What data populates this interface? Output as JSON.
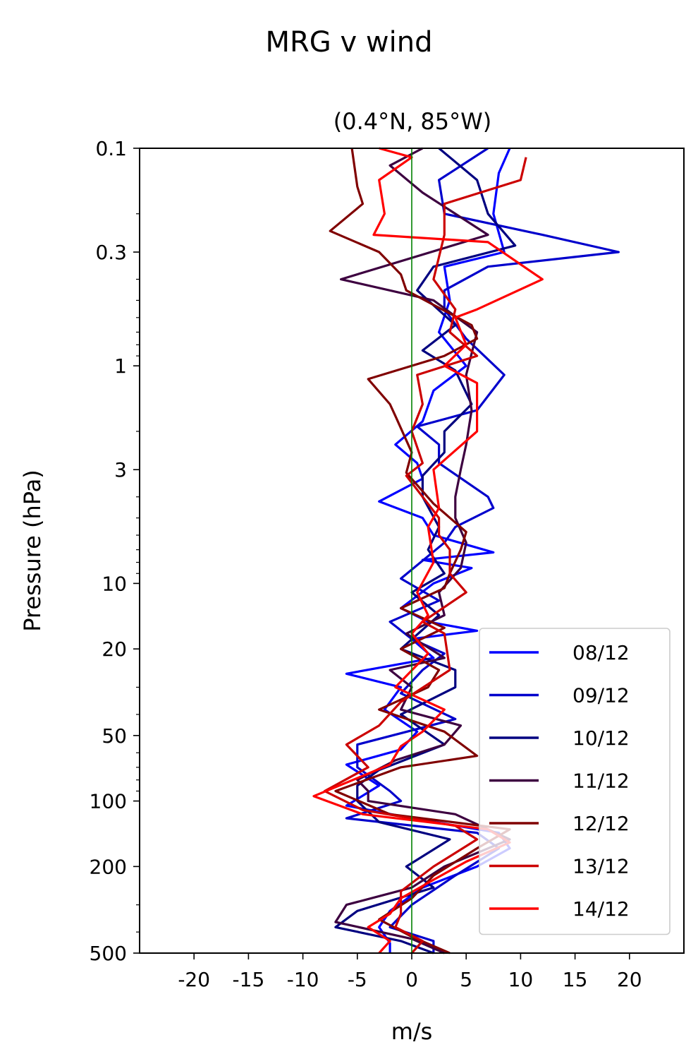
{
  "chart_data": {
    "type": "line",
    "title": "MRG v wind",
    "subtitle": "(0.4°N, 85°W)",
    "xlabel": "m/s",
    "ylabel": "Pressure (hPa)",
    "xlim": [
      -25,
      25
    ],
    "ylim": [
      500,
      0.1
    ],
    "yscale": "log",
    "xticks": [
      -20,
      -15,
      -10,
      -5,
      0,
      5,
      10,
      15,
      20
    ],
    "xtick_labels": [
      "-20",
      "-15",
      "-10",
      "-5",
      "0",
      "5",
      "10",
      "15",
      "20"
    ],
    "yticks": [
      0.1,
      0.3,
      1,
      3,
      10,
      20,
      50,
      100,
      200,
      500
    ],
    "ytick_labels": [
      "0.1",
      "0.3",
      "1",
      "3",
      "10",
      "20",
      "50",
      "100",
      "200",
      "500"
    ],
    "reference_line": {
      "x": 0,
      "color": "#008000"
    },
    "legend_position": "lower-right",
    "grid": false,
    "series": [
      {
        "name": "08/12",
        "color": "#0000ff",
        "points": [
          [
            9,
            0.1
          ],
          [
            8,
            0.13
          ],
          [
            7.5,
            0.2
          ],
          [
            8.5,
            0.3
          ],
          [
            3,
            0.35
          ],
          [
            3.5,
            0.5
          ],
          [
            2.5,
            0.7
          ],
          [
            5,
            1
          ],
          [
            2,
            1.3
          ],
          [
            1,
            1.8
          ],
          [
            -1.5,
            2.3
          ],
          [
            0.5,
            2.8
          ],
          [
            1,
            3.3
          ],
          [
            -3,
            4.2
          ],
          [
            1,
            5
          ],
          [
            2,
            6
          ],
          [
            7.5,
            7.2
          ],
          [
            1,
            7.8
          ],
          [
            5.5,
            8.5
          ],
          [
            2,
            10
          ],
          [
            -1,
            13
          ],
          [
            1.5,
            15
          ],
          [
            6,
            16.5
          ],
          [
            0,
            18
          ],
          [
            2,
            22
          ],
          [
            -6,
            26
          ],
          [
            -1,
            30
          ],
          [
            -2.5,
            38
          ],
          [
            0.5,
            48
          ],
          [
            -1,
            58
          ],
          [
            -6,
            68
          ],
          [
            -3,
            85
          ],
          [
            -6,
            105
          ],
          [
            0,
            120
          ],
          [
            8,
            140
          ],
          [
            9,
            165
          ],
          [
            6,
            200
          ],
          [
            1,
            250
          ],
          [
            -2,
            320
          ],
          [
            -3,
            380
          ],
          [
            -2,
            450
          ],
          [
            -2,
            500
          ]
        ]
      },
      {
        "name": "09/12",
        "color": "#0000cc",
        "points": [
          [
            7,
            0.1
          ],
          [
            2.5,
            0.14
          ],
          [
            3,
            0.2
          ],
          [
            12,
            0.25
          ],
          [
            19,
            0.3
          ],
          [
            7,
            0.35
          ],
          [
            3,
            0.45
          ],
          [
            3,
            0.55
          ],
          [
            5,
            0.75
          ],
          [
            8.5,
            1.1
          ],
          [
            6,
            1.6
          ],
          [
            0.5,
            1.9
          ],
          [
            2.5,
            2.3
          ],
          [
            2.5,
            2.8
          ],
          [
            7,
            4
          ],
          [
            7.5,
            4.5
          ],
          [
            4,
            5.5
          ],
          [
            3,
            6.5
          ],
          [
            -1,
            9.5
          ],
          [
            2.5,
            12
          ],
          [
            -2,
            15
          ],
          [
            0,
            18
          ],
          [
            3,
            21
          ],
          [
            1,
            25
          ],
          [
            -1,
            32
          ],
          [
            4,
            42
          ],
          [
            -5,
            55
          ],
          [
            -5,
            70
          ],
          [
            -2,
            90
          ],
          [
            -1,
            100
          ],
          [
            -6,
            120
          ],
          [
            6,
            140
          ],
          [
            8,
            165
          ],
          [
            4,
            220
          ],
          [
            0,
            300
          ],
          [
            -2,
            380
          ],
          [
            2,
            440
          ],
          [
            2,
            500
          ]
        ]
      },
      {
        "name": "10/12",
        "color": "#000080",
        "points": [
          [
            2.5,
            0.1
          ],
          [
            6,
            0.14
          ],
          [
            7,
            0.2
          ],
          [
            9.5,
            0.28
          ],
          [
            2,
            0.35
          ],
          [
            0.5,
            0.45
          ],
          [
            4,
            0.65
          ],
          [
            1,
            0.85
          ],
          [
            4,
            1.05
          ],
          [
            5.5,
            1.5
          ],
          [
            3,
            2
          ],
          [
            3,
            2.5
          ],
          [
            1,
            3.2
          ],
          [
            1,
            4
          ],
          [
            2.5,
            5.5
          ],
          [
            1.5,
            7
          ],
          [
            3,
            9
          ],
          [
            0,
            11
          ],
          [
            2.5,
            14
          ],
          [
            -1,
            20
          ],
          [
            4,
            25
          ],
          [
            4,
            30
          ],
          [
            -1,
            40
          ],
          [
            3,
            55
          ],
          [
            -3,
            72
          ],
          [
            -5,
            85
          ],
          [
            -5,
            100
          ],
          [
            -3,
            125
          ],
          [
            3.5,
            150
          ],
          [
            -0.5,
            200
          ],
          [
            2,
            250
          ],
          [
            -5,
            320
          ],
          [
            -7,
            380
          ],
          [
            -1,
            440
          ],
          [
            2,
            500
          ]
        ]
      },
      {
        "name": "11/12",
        "color": "#3d0040",
        "points": [
          [
            1,
            0.1
          ],
          [
            -2,
            0.12
          ],
          [
            1,
            0.16
          ],
          [
            7,
            0.25
          ],
          [
            -6.5,
            0.4
          ],
          [
            2,
            0.5
          ],
          [
            6,
            0.7
          ],
          [
            5,
            1.1
          ],
          [
            5.5,
            1.6
          ],
          [
            5,
            2.3
          ],
          [
            4.5,
            3
          ],
          [
            4,
            4
          ],
          [
            4,
            5
          ],
          [
            5,
            6.5
          ],
          [
            4.5,
            8.5
          ],
          [
            2.5,
            11
          ],
          [
            3,
            14
          ],
          [
            -0.5,
            17
          ],
          [
            3,
            22
          ],
          [
            -2,
            25
          ],
          [
            0,
            30
          ],
          [
            -1,
            38
          ],
          [
            4.5,
            45
          ],
          [
            3,
            55
          ],
          [
            -1.5,
            65
          ],
          [
            -5,
            80
          ],
          [
            -4,
            90
          ],
          [
            -4,
            100
          ],
          [
            4,
            115
          ],
          [
            7,
            135
          ],
          [
            9,
            150
          ],
          [
            3,
            200
          ],
          [
            0,
            250
          ],
          [
            -6,
            300
          ],
          [
            -7,
            360
          ],
          [
            0,
            430
          ],
          [
            3,
            500
          ]
        ]
      },
      {
        "name": "12/12",
        "color": "#800000",
        "points": [
          [
            -5.5,
            0.1
          ],
          [
            -5,
            0.15
          ],
          [
            -4.5,
            0.18
          ],
          [
            -7.5,
            0.24
          ],
          [
            -3,
            0.3
          ],
          [
            -1,
            0.38
          ],
          [
            -0.5,
            0.45
          ],
          [
            5.5,
            0.65
          ],
          [
            6,
            0.75
          ],
          [
            3,
            0.9
          ],
          [
            -4,
            1.15
          ],
          [
            -2,
            1.5
          ],
          [
            -1.5,
            1.7
          ],
          [
            0,
            2.5
          ],
          [
            -0.5,
            3.1
          ],
          [
            2,
            4.3
          ],
          [
            5,
            5.8
          ],
          [
            4.5,
            7
          ],
          [
            3.5,
            9
          ],
          [
            3,
            10.5
          ],
          [
            -1,
            13
          ],
          [
            3,
            16
          ],
          [
            -1,
            20
          ],
          [
            2.5,
            25
          ],
          [
            1.5,
            30
          ],
          [
            -3,
            38
          ],
          [
            3,
            48
          ],
          [
            6,
            62
          ],
          [
            -1,
            70
          ],
          [
            -7,
            90
          ],
          [
            -2,
            115
          ],
          [
            9,
            135
          ],
          [
            6,
            165
          ],
          [
            2,
            220
          ],
          [
            0,
            280
          ],
          [
            -3,
            350
          ],
          [
            0,
            420
          ],
          [
            3.5,
            500
          ]
        ]
      },
      {
        "name": "13/12",
        "color": "#cc0000",
        "points": [
          [
            10.5,
            0.11
          ],
          [
            10,
            0.14
          ],
          [
            3,
            0.18
          ],
          [
            3,
            0.25
          ],
          [
            2,
            0.4
          ],
          [
            4,
            0.55
          ],
          [
            3.5,
            0.7
          ],
          [
            6,
            0.9
          ],
          [
            0.5,
            1.1
          ],
          [
            1,
            1.5
          ],
          [
            0,
            2
          ],
          [
            1,
            2.8
          ],
          [
            -0.5,
            3.2
          ],
          [
            1,
            4
          ],
          [
            2.5,
            5
          ],
          [
            2.5,
            6
          ],
          [
            3.5,
            7
          ],
          [
            3.5,
            9
          ],
          [
            5,
            11
          ],
          [
            1,
            15
          ],
          [
            3,
            17
          ],
          [
            3.5,
            25
          ],
          [
            -1,
            35
          ],
          [
            -3,
            45
          ],
          [
            -6,
            55
          ],
          [
            -4,
            70
          ],
          [
            -8,
            90
          ],
          [
            -4.5,
            110
          ],
          [
            4,
            130
          ],
          [
            6,
            150
          ],
          [
            2,
            200
          ],
          [
            -1,
            260
          ],
          [
            -1,
            330
          ],
          [
            -1.5,
            380
          ],
          [
            1,
            440
          ],
          [
            0,
            500
          ]
        ]
      },
      {
        "name": "14/12",
        "color": "#ff0000",
        "points": [
          [
            -3,
            0.1
          ],
          [
            0,
            0.11
          ],
          [
            -3,
            0.14
          ],
          [
            -2.5,
            0.2
          ],
          [
            -3.5,
            0.25
          ],
          [
            7,
            0.27
          ],
          [
            12,
            0.4
          ],
          [
            6,
            0.55
          ],
          [
            4,
            0.6
          ],
          [
            5,
            0.8
          ],
          [
            3,
            1
          ],
          [
            6,
            1.2
          ],
          [
            6,
            2
          ],
          [
            2,
            3
          ],
          [
            2.5,
            4.5
          ],
          [
            1.5,
            5.5
          ],
          [
            2,
            8
          ],
          [
            0.5,
            11
          ],
          [
            1.5,
            14
          ],
          [
            0,
            17
          ],
          [
            1.5,
            21
          ],
          [
            -1.5,
            30
          ],
          [
            3,
            38
          ],
          [
            1,
            48
          ],
          [
            -1,
            56
          ],
          [
            -2,
            68
          ],
          [
            -9,
            95
          ],
          [
            -4.5,
            115
          ],
          [
            7,
            135
          ],
          [
            9,
            155
          ],
          [
            5,
            190
          ],
          [
            2,
            230
          ],
          [
            -1,
            280
          ],
          [
            -2,
            330
          ],
          [
            -4,
            380
          ],
          [
            -2,
            440
          ],
          [
            -3,
            500
          ]
        ]
      }
    ]
  }
}
